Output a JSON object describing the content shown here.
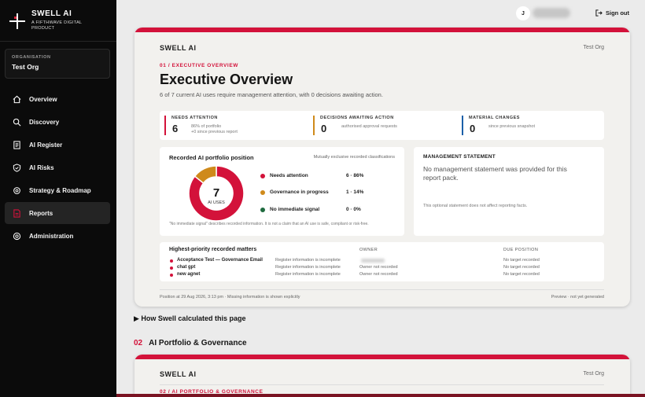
{
  "sidebar": {
    "brand_name": "SWELL AI",
    "brand_tagline": "A FIFTHWAVE DIGITAL PRODUCT",
    "org_label": "ORGANISATION",
    "org_name": "Test Org",
    "items": [
      {
        "label": "Overview",
        "icon": "home-icon"
      },
      {
        "label": "Discovery",
        "icon": "search-icon"
      },
      {
        "label": "AI Register",
        "icon": "register-icon"
      },
      {
        "label": "AI Risks",
        "icon": "shield-icon"
      },
      {
        "label": "Strategy & Roadmap",
        "icon": "gear-icon"
      },
      {
        "label": "Reports",
        "icon": "report-icon",
        "active": true
      },
      {
        "label": "Administration",
        "icon": "admin-icon"
      }
    ]
  },
  "topbar": {
    "user_initial": "J",
    "signout_label": "Sign out"
  },
  "report": {
    "brand": "SWELL AI",
    "org": "Test Org",
    "section": "01 / EXECUTIVE OVERVIEW",
    "title": "Executive Overview",
    "subtitle": "6 of 7 current AI uses require management attention, with 0 decisions awaiting action.",
    "metrics": [
      {
        "label": "NEEDS ATTENTION",
        "value": "6",
        "desc": "86% of portfolio",
        "desc2": "+0 since previous report",
        "color": "#d3123a"
      },
      {
        "label": "DECISIONS AWAITING ACTION",
        "value": "0",
        "desc": "authorised approval requests",
        "color": "#cf8a1b"
      },
      {
        "label": "MATERIAL CHANGES",
        "value": "0",
        "desc": "since previous snapshot",
        "color": "#1b5fa8"
      }
    ],
    "portfolio": {
      "title": "Recorded AI portfolio position",
      "note": "Mutually exclusive recorded classifications",
      "center_value": "7",
      "center_label": "AI USES",
      "footnote": "\"No immediate signal\" describes recorded information. It is not a claim that an AI use is safe, compliant or risk-free."
    },
    "chart_data": {
      "type": "pie",
      "categories": [
        "Needs attention",
        "Governance in progress",
        "No immediate signal"
      ],
      "values": [
        6,
        1,
        0
      ],
      "display": [
        "6 · 86%",
        "1 · 14%",
        "0 · 0%"
      ],
      "colors": [
        "#d3123a",
        "#cf8a1b",
        "#1f6b3f"
      ]
    },
    "management": {
      "title": "MANAGEMENT STATEMENT",
      "body": "No management statement was provided for this report pack.",
      "note": "This optional statement does not affect reporting facts."
    },
    "matters": {
      "title": "Highest-priority recorded matters",
      "owner_header": "OWNER",
      "due_header": "DUE POSITION",
      "rows": [
        {
          "name": "Acceptance Test — Governance Email",
          "register": "Register information is incomplete",
          "owner": "",
          "due": "No target recorded"
        },
        {
          "name": "chat gpt",
          "register": "Register information is incomplete",
          "owner": "Owner not recorded",
          "due": "No target recorded"
        },
        {
          "name": "new agnet",
          "register": "Register information is incomplete",
          "owner": "Owner not recorded",
          "due": "No target recorded"
        }
      ]
    },
    "position": "Position at 29 Aug 2026, 3:13 pm · Missing information is shown explicitly",
    "preview": "Preview · not yet generated"
  },
  "calc_link": "▶ How Swell calculated this page",
  "section2": {
    "num": "02",
    "title": "AI Portfolio & Governance",
    "brand": "SWELL AI",
    "org": "Test Org",
    "section": "02 / AI PORTFOLIO & GOVERNANCE"
  }
}
